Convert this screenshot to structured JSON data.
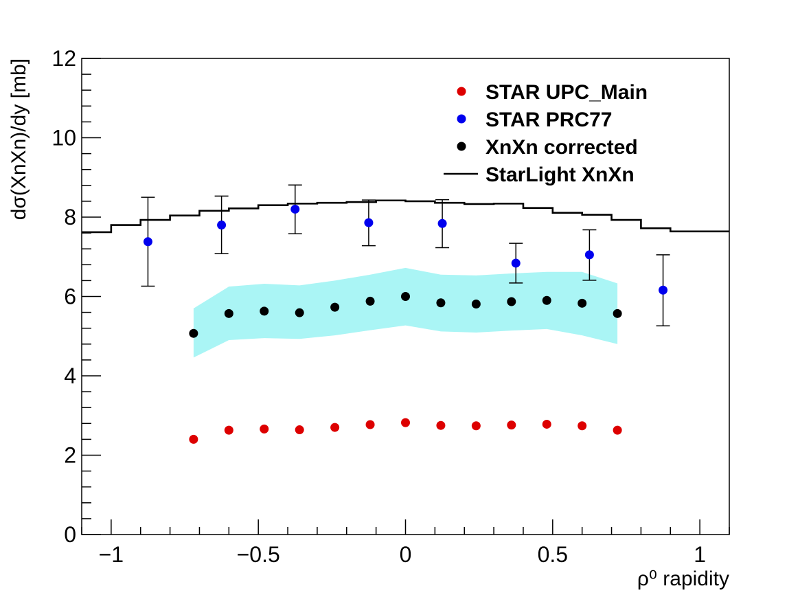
{
  "chart_data": {
    "type": "scatter",
    "title": "",
    "xlabel": "ρ⁰ rapidity",
    "ylabel": "dσ(XnXn)/dy [mb]",
    "xlim": [
      -1.1,
      1.1
    ],
    "ylim": [
      0,
      12
    ],
    "x_ticks": [
      {
        "value": -1,
        "label": "−1"
      },
      {
        "value": -0.5,
        "label": "−0.5"
      },
      {
        "value": 0,
        "label": "0"
      },
      {
        "value": 0.5,
        "label": "0.5"
      },
      {
        "value": 1,
        "label": "1"
      }
    ],
    "y_ticks": [
      {
        "value": 0,
        "label": "0"
      },
      {
        "value": 2,
        "label": "2"
      },
      {
        "value": 4,
        "label": "4"
      },
      {
        "value": 6,
        "label": "6"
      },
      {
        "value": 8,
        "label": "8"
      },
      {
        "value": 10,
        "label": "10"
      },
      {
        "value": 12,
        "label": "12"
      }
    ],
    "grid": false,
    "legend_position": "top-right",
    "series": [
      {
        "name": "STAR UPC_Main",
        "kind": "points",
        "color": "#dd0000",
        "x": [
          -0.72,
          -0.6,
          -0.48,
          -0.36,
          -0.24,
          -0.12,
          0.0,
          0.12,
          0.24,
          0.36,
          0.48,
          0.6,
          0.72
        ],
        "y": [
          2.4,
          2.63,
          2.66,
          2.64,
          2.7,
          2.77,
          2.82,
          2.75,
          2.74,
          2.76,
          2.78,
          2.74,
          2.63
        ]
      },
      {
        "name": "STAR PRC77",
        "kind": "points_with_errors",
        "color": "#0000ee",
        "x": [
          -0.875,
          -0.625,
          -0.375,
          -0.125,
          0.125,
          0.375,
          0.625,
          0.875
        ],
        "y": [
          7.38,
          7.8,
          8.2,
          7.86,
          7.84,
          6.84,
          7.05,
          6.16
        ],
        "yerr_low": [
          6.26,
          7.08,
          7.58,
          7.28,
          7.23,
          6.34,
          6.41,
          5.26
        ],
        "yerr_high": [
          8.5,
          8.53,
          8.81,
          8.43,
          8.44,
          7.34,
          7.68,
          7.05
        ]
      },
      {
        "name": "XnXn corrected",
        "kind": "points_with_band",
        "color": "#000000",
        "band_color": "#aaf5f5",
        "x": [
          -0.72,
          -0.6,
          -0.48,
          -0.36,
          -0.24,
          -0.12,
          0.0,
          0.12,
          0.24,
          0.36,
          0.48,
          0.6,
          0.72
        ],
        "y": [
          5.07,
          5.57,
          5.63,
          5.59,
          5.73,
          5.88,
          6.0,
          5.84,
          5.81,
          5.87,
          5.9,
          5.83,
          5.57
        ],
        "band_low": [
          4.46,
          4.9,
          4.95,
          4.93,
          5.02,
          5.15,
          5.27,
          5.12,
          5.09,
          5.14,
          5.18,
          5.02,
          4.8
        ],
        "band_high": [
          5.7,
          6.25,
          6.32,
          6.28,
          6.4,
          6.55,
          6.72,
          6.55,
          6.53,
          6.58,
          6.62,
          6.62,
          6.33
        ]
      },
      {
        "name": "StarLight XnXn",
        "kind": "step",
        "color": "#000000",
        "bin_edges": [
          -1.1,
          -1.0,
          -0.9,
          -0.8,
          -0.7,
          -0.6,
          -0.5,
          -0.4,
          -0.3,
          -0.2,
          -0.1,
          0.0,
          0.1,
          0.2,
          0.3,
          0.4,
          0.5,
          0.6,
          0.7,
          0.8,
          0.9,
          1.0,
          1.1
        ],
        "values": [
          7.62,
          7.8,
          7.93,
          8.04,
          8.16,
          8.22,
          8.3,
          8.34,
          8.36,
          8.38,
          8.42,
          8.4,
          8.36,
          8.33,
          8.34,
          8.23,
          8.11,
          8.06,
          7.93,
          7.72,
          7.64,
          7.64
        ]
      }
    ]
  }
}
